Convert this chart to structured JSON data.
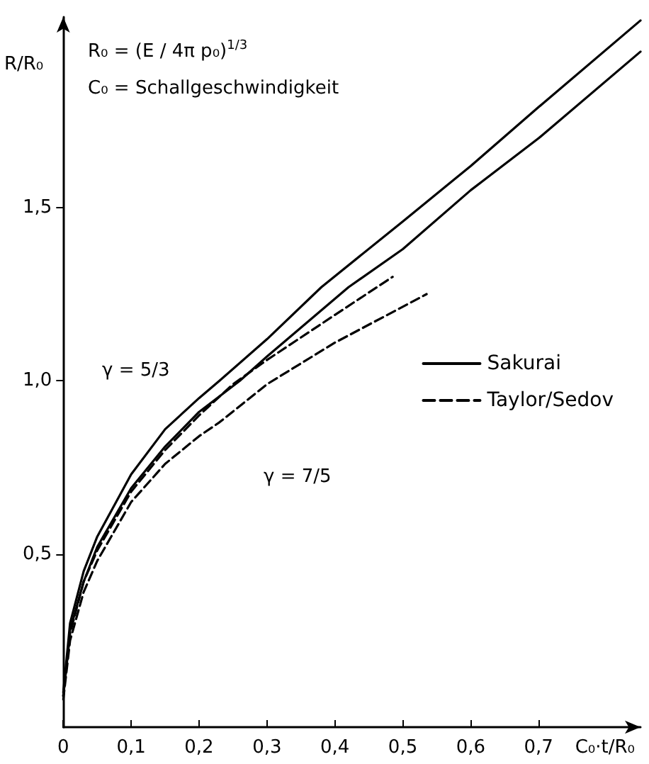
{
  "chart_data": {
    "type": "line",
    "xlabel": "C₀·t/R₀",
    "ylabel": "R/R₀",
    "annotations": [
      "R₀ = (E / 4π p₀)$^{1/3}$",
      "C₀ = Schallgeschwindigkeit",
      "γ = 5/3",
      "γ = 7/5"
    ],
    "xlim": [
      0,
      0.85
    ],
    "ylim": [
      0,
      2.05
    ],
    "xticks": [
      {
        "value": 0,
        "label": "0"
      },
      {
        "value": 0.1,
        "label": "0,1"
      },
      {
        "value": 0.2,
        "label": "0,2"
      },
      {
        "value": 0.3,
        "label": "0,3"
      },
      {
        "value": 0.4,
        "label": "0,4"
      },
      {
        "value": 0.5,
        "label": "0,5"
      },
      {
        "value": 0.6,
        "label": "0,6"
      },
      {
        "value": 0.7,
        "label": "0,7"
      }
    ],
    "yticks": [
      {
        "value": 0.5,
        "label": "0,5"
      },
      {
        "value": 1.0,
        "label": "1,0"
      },
      {
        "value": 1.5,
        "label": "1,5"
      }
    ],
    "grid": false,
    "legend": "right",
    "marker": "none",
    "series": [
      {
        "name": "Sakurai",
        "color": "#000000",
        "line_style": "solid",
        "x": [
          0,
          0.01,
          0.03,
          0.05,
          0.1,
          0.15,
          0.2,
          0.23,
          0.3,
          0.38,
          0.5,
          0.6,
          0.7,
          0.85
        ],
        "values": [
          0.1,
          0.3,
          0.45,
          0.55,
          0.73,
          0.86,
          0.95,
          1.0,
          1.12,
          1.27,
          1.46,
          1.62,
          1.79,
          2.04
        ]
      },
      {
        "color": "#000000",
        "line_style": "solid",
        "x": [
          0,
          0.01,
          0.03,
          0.05,
          0.1,
          0.15,
          0.2,
          0.26,
          0.3,
          0.42,
          0.5,
          0.6,
          0.7,
          0.85
        ],
        "values": [
          0.09,
          0.28,
          0.42,
          0.52,
          0.69,
          0.81,
          0.91,
          1.0,
          1.07,
          1.27,
          1.38,
          1.55,
          1.7,
          1.95
        ]
      },
      {
        "name": "Taylor/Sedov",
        "color": "#000000",
        "line_style": "dashed",
        "x": [
          0,
          0.01,
          0.03,
          0.05,
          0.1,
          0.15,
          0.2,
          0.25,
          0.3,
          0.4,
          0.485
        ],
        "values": [
          0.09,
          0.27,
          0.42,
          0.51,
          0.68,
          0.8,
          0.9,
          0.99,
          1.06,
          1.19,
          1.3
        ]
      },
      {
        "color": "#000000",
        "line_style": "dashed",
        "x": [
          0,
          0.01,
          0.03,
          0.05,
          0.1,
          0.15,
          0.2,
          0.23,
          0.3,
          0.4,
          0.535
        ],
        "values": [
          0.08,
          0.25,
          0.39,
          0.48,
          0.65,
          0.76,
          0.84,
          0.88,
          0.99,
          1.11,
          1.25
        ]
      }
    ]
  }
}
